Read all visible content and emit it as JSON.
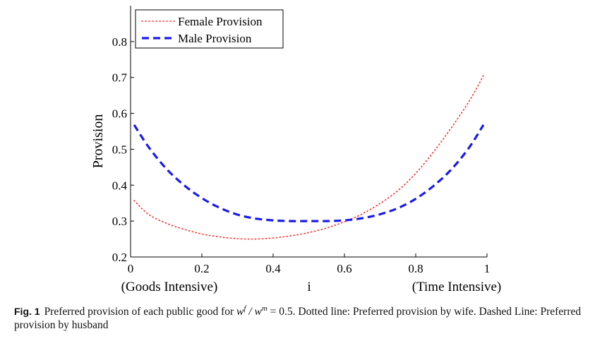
{
  "chart_data": {
    "type": "line",
    "title": "",
    "ylabel": "Provision",
    "xlabel": "i",
    "x_endpoint_labels": {
      "left": "(Goods Intensive)",
      "right": "(Time Intensive)"
    },
    "xlim": [
      0,
      1
    ],
    "ylim": [
      0.2,
      0.9
    ],
    "xticks": [
      0,
      0.2,
      0.4,
      0.6,
      0.8,
      1
    ],
    "xtick_labels": [
      "0",
      "0.2",
      "0.4",
      "0.6",
      "0.8",
      "1"
    ],
    "yticks": [
      0.2,
      0.3,
      0.4,
      0.5,
      0.6,
      0.7,
      0.8
    ],
    "ytick_labels": [
      "0.2",
      "0.3",
      "0.4",
      "0.5",
      "0.6",
      "0.7",
      "0.8"
    ],
    "grid": false,
    "legend_position": "top-left",
    "series": [
      {
        "name": "Female Provision",
        "style": "dotted",
        "color": "#ff2a2a",
        "x": [
          0.01,
          0.05,
          0.1,
          0.15,
          0.2,
          0.25,
          0.3,
          0.35,
          0.4,
          0.45,
          0.5,
          0.55,
          0.6,
          0.65,
          0.7,
          0.75,
          0.8,
          0.85,
          0.9,
          0.95,
          0.99
        ],
        "y": [
          0.357,
          0.319,
          0.294,
          0.277,
          0.264,
          0.256,
          0.251,
          0.25,
          0.253,
          0.259,
          0.268,
          0.281,
          0.298,
          0.32,
          0.349,
          0.385,
          0.433,
          0.493,
          0.56,
          0.634,
          0.705
        ]
      },
      {
        "name": "Male Provision",
        "style": "dashed",
        "color": "#1a1aee",
        "x": [
          0.01,
          0.05,
          0.1,
          0.15,
          0.2,
          0.25,
          0.3,
          0.35,
          0.4,
          0.45,
          0.5,
          0.55,
          0.6,
          0.65,
          0.7,
          0.75,
          0.8,
          0.85,
          0.9,
          0.95,
          0.99
        ],
        "y": [
          0.568,
          0.507,
          0.446,
          0.4,
          0.364,
          0.337,
          0.318,
          0.307,
          0.302,
          0.3,
          0.3,
          0.3,
          0.302,
          0.308,
          0.319,
          0.336,
          0.362,
          0.398,
          0.444,
          0.505,
          0.568
        ]
      }
    ]
  },
  "caption": {
    "label": "Fig. 1",
    "text_before": "Preferred provision of each public good for",
    "math": "w^f / w^m = 0.5",
    "text_after": ". Dotted line: Preferred provision by wife. Dashed Line: Preferred provision by husband"
  }
}
